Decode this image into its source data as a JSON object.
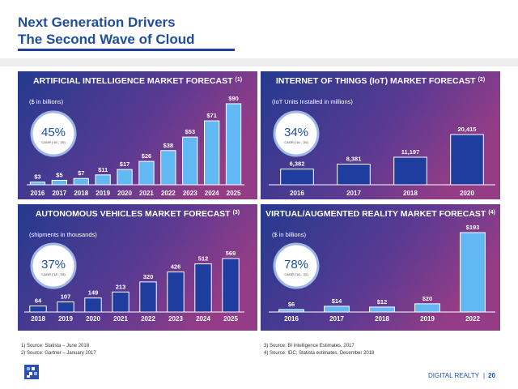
{
  "header": {
    "title": [
      "Next Generation Drivers",
      "The Second Wave of Cloud"
    ]
  },
  "chart_data": [
    {
      "type": "bar",
      "title": "ARTIFICIAL INTELLIGENCE MARKET FORECAST",
      "title_note": "(1)",
      "subtitle": "($ in billions)",
      "cagr": "45%",
      "cagr_label": "CAGR ('16 - '25)",
      "categories": [
        "2016",
        "2017",
        "2018",
        "2019",
        "2020",
        "2021",
        "2022",
        "2023",
        "2024",
        "2025"
      ],
      "values": [
        3,
        5,
        7,
        11,
        17,
        26,
        38,
        53,
        71,
        90
      ],
      "value_labels": [
        "$3",
        "$5",
        "$7",
        "$11",
        "$17",
        "$26",
        "$38",
        "$53",
        "$71",
        "$90"
      ],
      "color": "#62b8f2"
    },
    {
      "type": "bar",
      "title": "INTERNET OF THINGS (IoT) MARKET FORECAST",
      "title_note": "(2)",
      "subtitle": "(IoT Units Installed in millions)",
      "cagr": "34%",
      "cagr_label": "CAGR ('16 - '20)",
      "categories": [
        "2016",
        "2017",
        "2018",
        "2020"
      ],
      "values": [
        6382,
        8381,
        11197,
        20415
      ],
      "value_labels": [
        "6,382",
        "8,381",
        "11,197",
        "20,415"
      ],
      "color": "#1f3d9e"
    },
    {
      "type": "bar",
      "title": "AUTONOMOUS VEHICLES MARKET FORECAST",
      "title_note": "(3)",
      "subtitle": "(shipments in thousands)",
      "cagr": "37%",
      "cagr_label": "CAGR ('18 - '25)",
      "categories": [
        "2018",
        "2019",
        "2020",
        "2021",
        "2022",
        "2023",
        "2024",
        "2025"
      ],
      "values": [
        64,
        107,
        149,
        213,
        320,
        426,
        512,
        569
      ],
      "color": "#1f3d9e"
    },
    {
      "type": "bar",
      "title": "VIRTUAL/AUGMENTED REALITY MARKET FORECAST",
      "title_note": "(4)",
      "subtitle": "($ in billions)",
      "cagr": "78%",
      "cagr_label": "CAGR ('16 - '22)",
      "categories": [
        "2016",
        "2017",
        "2018",
        "2019",
        "2022"
      ],
      "values": [
        6,
        14,
        12,
        20,
        193
      ],
      "value_labels": [
        "$6",
        "$14",
        "$12",
        "$20",
        "$193"
      ],
      "color": "#62b8f2"
    }
  ],
  "footnotes": {
    "left": [
      "1) Source: Statista – June 2018",
      "2) Source: Gartner – January 2017"
    ],
    "right": [
      "3) Source: BI Intelligence Estimates, 2017",
      "4) Source: IDC; Statista estimates, December 2018"
    ]
  },
  "footer": {
    "company": "DIGITAL REALTY",
    "page": "20"
  }
}
